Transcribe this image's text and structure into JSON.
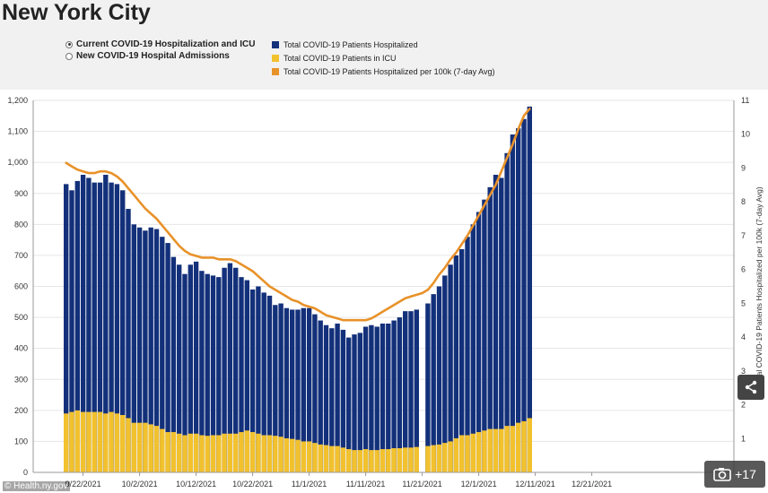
{
  "title": "New York City",
  "radio_options": [
    {
      "label": "Current COVID-19 Hospitalization and ICU",
      "selected": true
    },
    {
      "label": "New COVID-19 Hospital Admissions",
      "selected": false
    }
  ],
  "legend": [
    {
      "label": "Total COVID-19 Patients Hospitalized",
      "color": "#13307a"
    },
    {
      "label": "Total COVID-19 Patients in ICU",
      "color": "#f2c12e"
    },
    {
      "label": "Total COVID-19 Patients Hospitalized per 100k (7-day Avg)",
      "color": "#e8922a"
    }
  ],
  "credit": "© Health.ny.gov",
  "gallery": {
    "count": "+17",
    "icon": "camera-icon"
  },
  "share_icon": "share-icon",
  "chart_data": {
    "type": "bar",
    "x_tick_labels": [
      "9/22/2021",
      "10/2/2021",
      "10/12/2021",
      "10/22/2021",
      "11/1/2021",
      "11/11/2021",
      "11/21/2021",
      "12/1/2021",
      "12/11/2021",
      "12/21/2021"
    ],
    "y_left_ticks": [
      "0",
      "100",
      "200",
      "300",
      "400",
      "500",
      "600",
      "700",
      "800",
      "900",
      "1,000",
      "1,100",
      "1,200"
    ],
    "y_right_ticks": [
      "1",
      "2",
      "3",
      "4",
      "5",
      "6",
      "7",
      "8",
      "9",
      "10",
      "11"
    ],
    "ylim_left": [
      0,
      1200
    ],
    "ylim_right": [
      0,
      11
    ],
    "y_right_label": "Total COVID-19 Patients Hospitalized per 100k (7-day Avg)",
    "grid": true,
    "series": [
      {
        "name": "Total COVID-19 Patients Hospitalized",
        "type": "bar",
        "color": "#13307a",
        "values": [
          930,
          910,
          940,
          960,
          950,
          935,
          935,
          960,
          935,
          930,
          910,
          850,
          800,
          790,
          780,
          790,
          785,
          760,
          740,
          695,
          670,
          640,
          670,
          680,
          650,
          640,
          635,
          630,
          660,
          675,
          660,
          630,
          620,
          590,
          600,
          580,
          570,
          540,
          545,
          530,
          525,
          525,
          530,
          530,
          510,
          490,
          475,
          465,
          480,
          460,
          435,
          445,
          450,
          470,
          475,
          470,
          480,
          480,
          490,
          500,
          520,
          520,
          525,
          null,
          545,
          575,
          600,
          635,
          670,
          700,
          720,
          760,
          800,
          840,
          880,
          920,
          960,
          950,
          1030,
          1090,
          1110,
          1140,
          1180
        ]
      },
      {
        "name": "Total COVID-19 Patients in ICU",
        "type": "bar",
        "color": "#f2c12e",
        "values": [
          190,
          195,
          200,
          195,
          195,
          195,
          195,
          190,
          195,
          190,
          185,
          175,
          160,
          160,
          160,
          155,
          150,
          140,
          130,
          130,
          125,
          120,
          125,
          125,
          120,
          118,
          120,
          120,
          125,
          125,
          125,
          130,
          135,
          130,
          125,
          120,
          120,
          118,
          115,
          110,
          108,
          105,
          100,
          100,
          95,
          90,
          88,
          85,
          85,
          80,
          75,
          72,
          72,
          75,
          72,
          72,
          75,
          75,
          78,
          78,
          80,
          80,
          82,
          null,
          85,
          88,
          90,
          95,
          100,
          110,
          120,
          120,
          125,
          130,
          135,
          140,
          140,
          140,
          150,
          150,
          160,
          165,
          175
        ]
      },
      {
        "name": "Total COVID-19 Patients Hospitalized per 100k (7-day Avg)",
        "type": "line",
        "color": "#e8922a",
        "axis": "right",
        "values": [
          9.15,
          9.05,
          8.95,
          8.9,
          8.85,
          8.85,
          8.9,
          8.9,
          8.85,
          8.75,
          8.6,
          8.4,
          8.2,
          8.0,
          7.8,
          7.65,
          7.5,
          7.3,
          7.1,
          6.9,
          6.7,
          6.55,
          6.45,
          6.4,
          6.35,
          6.35,
          6.35,
          6.3,
          6.3,
          6.3,
          6.25,
          6.15,
          6.05,
          5.95,
          5.8,
          5.65,
          5.5,
          5.4,
          5.3,
          5.2,
          5.1,
          5.05,
          4.95,
          4.9,
          4.85,
          4.75,
          4.65,
          4.6,
          4.55,
          4.5,
          4.5,
          4.5,
          4.5,
          4.5,
          4.55,
          4.65,
          4.75,
          4.85,
          4.95,
          5.05,
          5.15,
          5.2,
          5.25,
          5.3,
          5.4,
          5.6,
          5.85,
          6.05,
          6.3,
          6.5,
          6.75,
          7.0,
          7.3,
          7.6,
          7.9,
          8.2,
          8.5,
          8.9,
          9.3,
          9.7,
          10.15,
          10.55,
          10.75
        ]
      }
    ]
  }
}
